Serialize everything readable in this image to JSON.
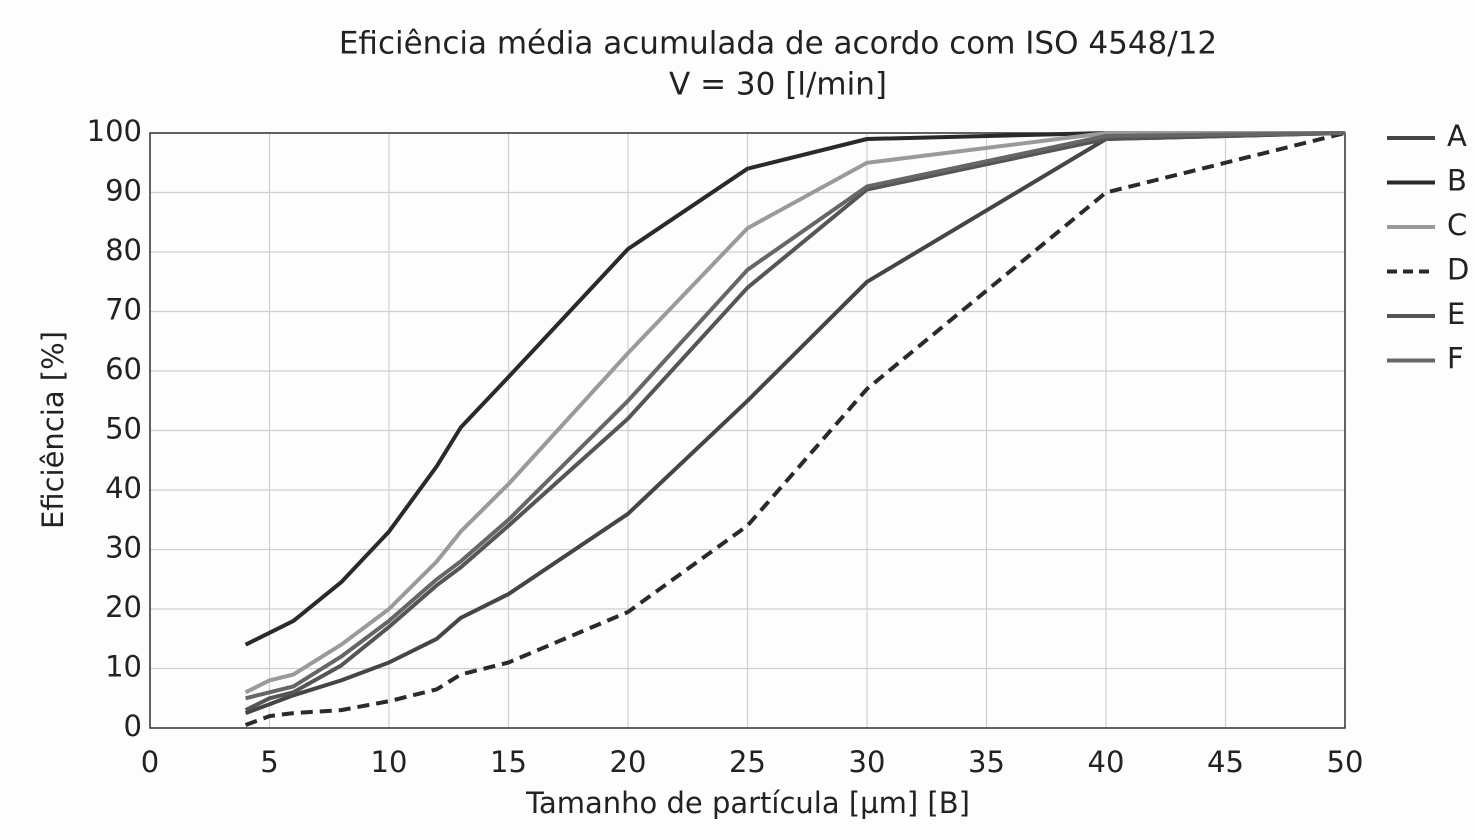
{
  "chart_data": {
    "type": "line",
    "title": "Eficiência média acumulada de acordo com ISO 4548/12",
    "subtitle": "V = 30 [l/min]",
    "x_label": "Tamanho de partícula [µm] [B]",
    "y_label": "Eficiência [%]",
    "x": [
      4,
      5,
      6,
      8,
      10,
      12,
      13,
      15,
      20,
      25,
      30,
      40,
      50
    ],
    "series": [
      {
        "name": "A",
        "color": "#454545",
        "values": [
          2.5,
          4,
          5.5,
          8,
          11,
          15,
          18.5,
          22.5,
          36,
          55,
          75,
          99,
          100
        ]
      },
      {
        "name": "B",
        "color": "#2a2a2a",
        "values": [
          14,
          16,
          18,
          24.5,
          33,
          44,
          50.5,
          59,
          80.5,
          94,
          99,
          100,
          100
        ]
      },
      {
        "name": "C",
        "color": "#9a9a9a",
        "values": [
          6,
          8,
          9,
          14,
          20,
          28,
          33,
          41,
          63,
          84,
          95,
          100,
          100
        ]
      },
      {
        "name": "D",
        "color": "#2a2a2a",
        "dashed": true,
        "values": [
          0.5,
          2,
          2.5,
          3,
          4.5,
          6.5,
          9,
          11,
          19.5,
          34,
          57,
          90,
          100
        ]
      },
      {
        "name": "E",
        "color": "#555555",
        "values": [
          3,
          5,
          6,
          10.5,
          17,
          24,
          27,
          34,
          52,
          74,
          90.5,
          99,
          100
        ]
      },
      {
        "name": "F",
        "color": "#666666",
        "values": [
          5,
          6,
          7,
          12,
          18,
          25,
          28,
          35,
          55,
          77,
          91,
          99.5,
          100
        ]
      }
    ],
    "xlim": [
      0,
      50
    ],
    "ylim": [
      0,
      100
    ],
    "xticks": [
      0,
      5,
      10,
      15,
      20,
      25,
      30,
      35,
      40,
      45,
      50
    ],
    "yticks": [
      0,
      10,
      20,
      30,
      40,
      50,
      60,
      70,
      80,
      90,
      100
    ],
    "grid": true
  }
}
